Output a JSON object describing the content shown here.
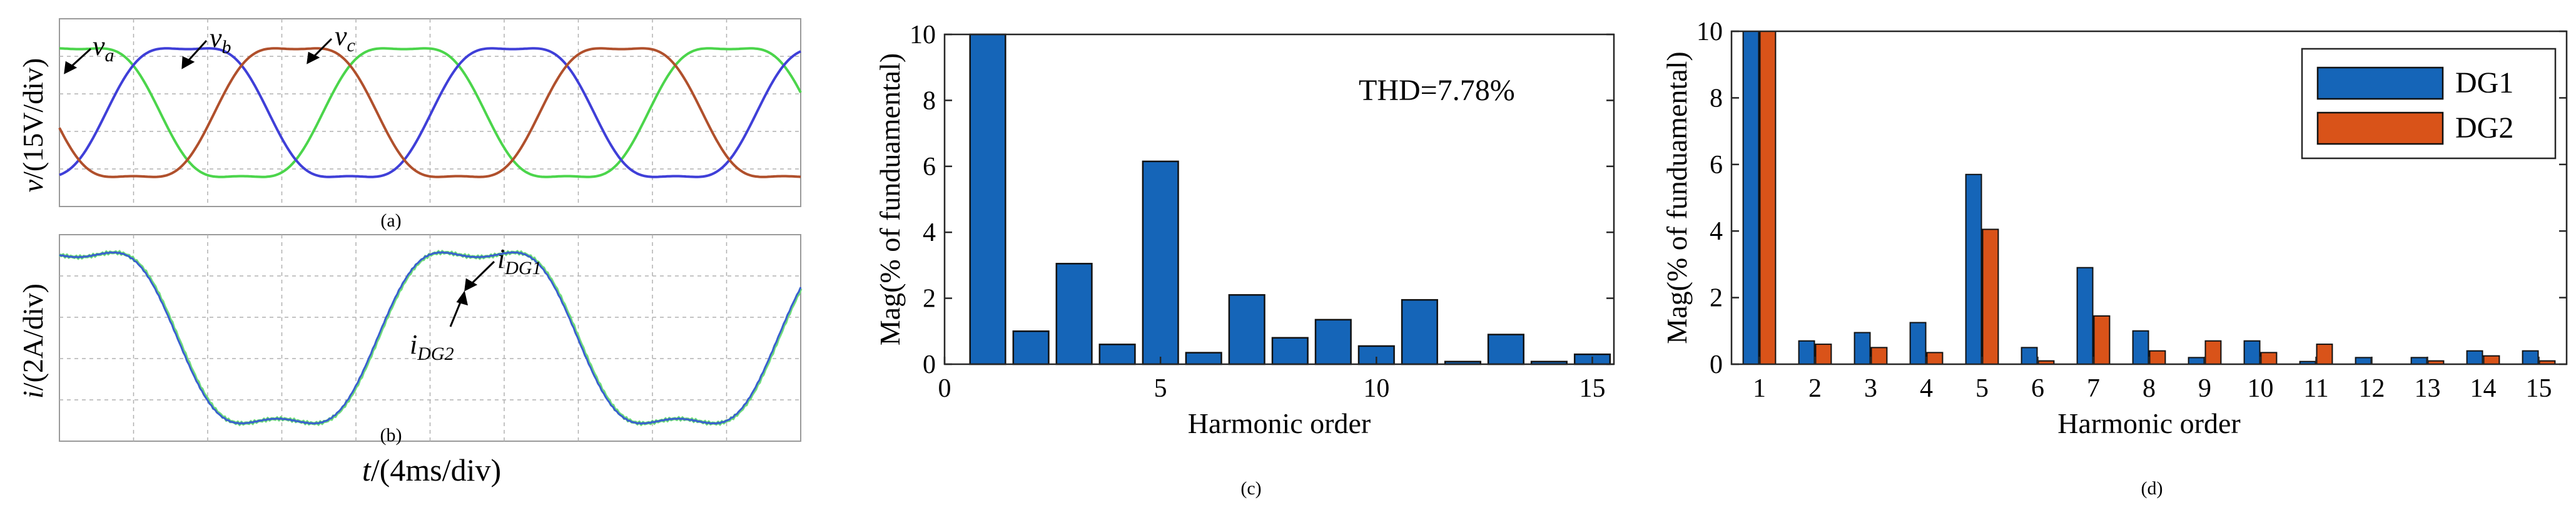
{
  "colors": {
    "va": "#4bd54b",
    "vb": "#3f3fd8",
    "vc": "#b0502c",
    "idg1": "#6fdc7a",
    "idg2": "#3a5fd0",
    "dg1": "#1565b8",
    "dg2": "#d95319"
  },
  "panels": {
    "a": {
      "label": "(a)",
      "ylabel_var": "v",
      "ylabel_unit": "/(15V/div)",
      "annotations": {
        "va": "a",
        "vb": "b",
        "vc": "c"
      }
    },
    "b": {
      "label": "(b)",
      "ylabel_var": "i",
      "ylabel_unit": "/(2A/div)",
      "xlabel_var": "t",
      "xlabel_unit": "/(4ms/div)",
      "annotations": {
        "dg1": "DG1",
        "dg2": "DG2"
      }
    },
    "c": {
      "label": "(c)"
    },
    "d": {
      "label": "(d)"
    }
  },
  "chart_data": [
    {
      "id": "c",
      "type": "bar",
      "xlabel": "Harmonic order",
      "ylabel": "Mag(% of funduamental)",
      "annotation": "THD=7.78%",
      "xlim": [
        0,
        15.5
      ],
      "ylim": [
        0,
        10
      ],
      "xticks": [
        0,
        5,
        10,
        15
      ],
      "yticks": [
        0,
        2,
        4,
        6,
        8,
        10
      ],
      "categories": [
        1,
        2,
        3,
        4,
        5,
        6,
        7,
        8,
        9,
        10,
        11,
        12,
        13,
        14,
        15
      ],
      "series": [
        {
          "values": [
            10,
            1.0,
            3.05,
            0.6,
            6.15,
            0.35,
            2.1,
            0.8,
            1.35,
            0.55,
            1.95,
            0.08,
            0.9,
            0.08,
            0.3
          ],
          "color": "#1565b8"
        }
      ]
    },
    {
      "id": "d",
      "type": "bar",
      "xlabel": "Harmonic order",
      "ylabel": "Mag(% of funduamental)",
      "ylim": [
        0,
        10
      ],
      "yticks": [
        0,
        2,
        4,
        6,
        8,
        10
      ],
      "legend": "top-right",
      "categories": [
        "1",
        "2",
        "3",
        "4",
        "5",
        "6",
        "7",
        "8",
        "9",
        "10",
        "11",
        "12",
        "13",
        "14",
        "15"
      ],
      "series": [
        {
          "name": "DG1",
          "color": "#1565b8",
          "values": [
            10,
            0.7,
            0.95,
            1.25,
            5.7,
            0.5,
            2.9,
            1.0,
            0.2,
            0.7,
            0.08,
            0.2,
            0.2,
            0.4,
            0.4
          ]
        },
        {
          "name": "DG2",
          "color": "#d95319",
          "values": [
            10,
            0.6,
            0.5,
            0.35,
            4.05,
            0.1,
            1.45,
            0.4,
            0.7,
            0.35,
            0.6,
            0.0,
            0.1,
            0.25,
            0.1
          ]
        }
      ]
    }
  ]
}
